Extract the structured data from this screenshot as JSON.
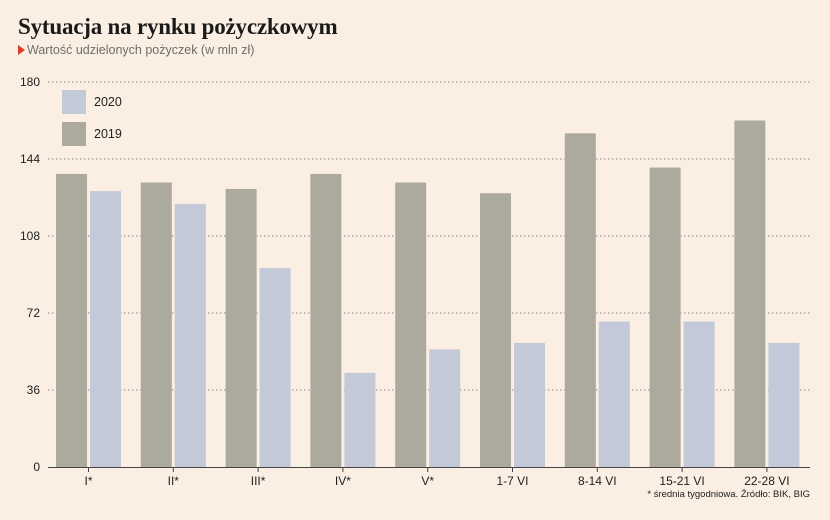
{
  "title": "Sytuacja na rynku pożyczkowym",
  "subtitle": "Wartość udzielonych pożyczek (w mln zł)",
  "footnote": "* średnia tygodniowa. Źródło: BIK, BIG",
  "colors": {
    "background": "#fbeee2",
    "series_2020": "#c3c9d8",
    "series_2019": "#acaa9c",
    "accent": "#e03a2f"
  },
  "chart_data": {
    "type": "bar",
    "categories": [
      "I*",
      "II*",
      "III*",
      "IV*",
      "V*",
      "1-7 VI",
      "8-14 VI",
      "15-21 VI",
      "22-28 VI"
    ],
    "series": [
      {
        "name": "2019",
        "values": [
          137,
          133,
          130,
          137,
          133,
          128,
          156,
          140,
          162
        ]
      },
      {
        "name": "2020",
        "values": [
          129,
          123,
          93,
          44,
          55,
          58,
          68,
          68,
          58
        ]
      }
    ],
    "ylim": [
      0,
      180
    ],
    "yticks": [
      0,
      36,
      72,
      108,
      144,
      180
    ],
    "legend_order": [
      "2020",
      "2019"
    ],
    "legend": "top-left",
    "grid": true
  }
}
